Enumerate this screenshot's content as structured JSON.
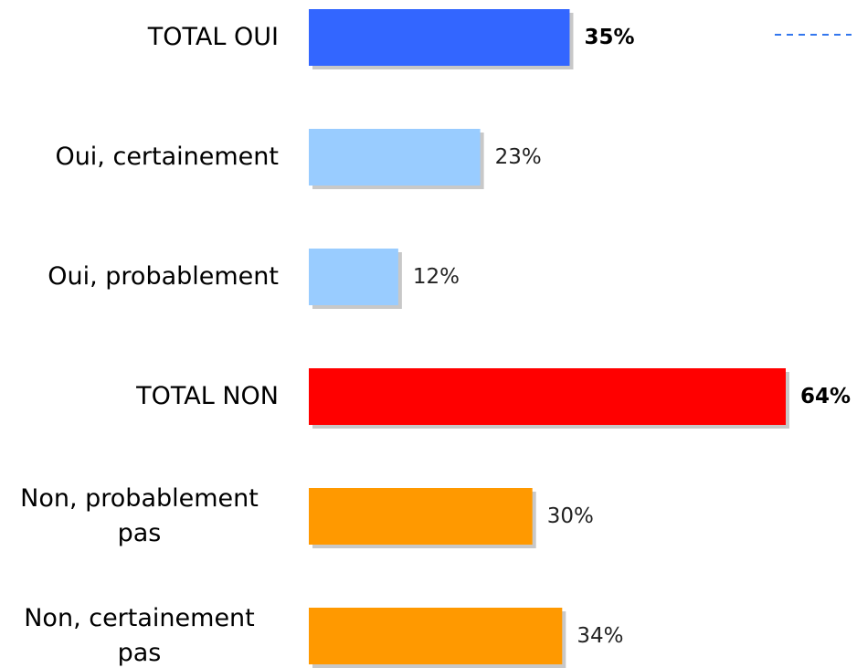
{
  "chart_data": {
    "type": "hbar",
    "categories": [
      "TOTAL OUI",
      "Oui, certainement",
      "Oui, probablement",
      "TOTAL NON",
      "Non, probablement pas",
      "Non, certainement pas"
    ],
    "values": [
      35,
      23,
      12,
      64,
      30,
      34
    ],
    "value_labels": [
      "35%",
      "23%",
      "12%",
      "64%",
      "30%",
      "34%"
    ],
    "colors": [
      "#3366ff",
      "#99ccff",
      "#99ccff",
      "#ff0000",
      "#ff9900",
      "#ff9900"
    ],
    "bold": [
      true,
      false,
      false,
      true,
      false,
      false
    ],
    "xlim": [
      0,
      64
    ]
  }
}
